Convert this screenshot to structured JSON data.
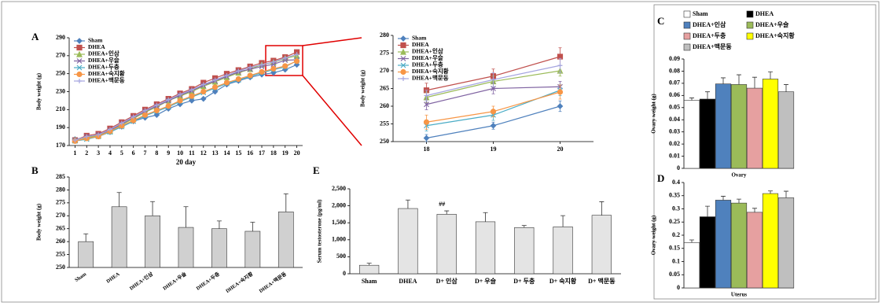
{
  "chart_data": [
    {
      "type": "line",
      "panel": "A",
      "xlabel": "20 day",
      "ylabel": "Body weight (g)",
      "x": [
        1,
        2,
        3,
        4,
        5,
        6,
        7,
        8,
        9,
        10,
        11,
        12,
        13,
        14,
        15,
        16,
        17,
        18,
        19,
        20
      ],
      "xlim": [
        0.5,
        20.5
      ],
      "xticks": [
        1,
        2,
        3,
        4,
        5,
        6,
        7,
        8,
        9,
        10,
        11,
        12,
        13,
        14,
        15,
        16,
        17,
        18,
        19,
        20
      ],
      "ylim": [
        170,
        290
      ],
      "yticks": [
        170,
        190,
        210,
        230,
        250,
        270,
        290
      ],
      "grid": false,
      "series": [
        {
          "name": "Sham",
          "color": "#4f81bd",
          "marker": "diamond",
          "values": [
            177,
            179,
            181,
            185,
            191,
            197,
            201,
            204,
            211,
            216,
            220,
            222,
            230,
            238,
            242,
            246,
            249,
            251,
            254.5,
            260
          ]
        },
        {
          "name": "DHEA",
          "color": "#c0504d",
          "marker": "square",
          "values": [
            176,
            181,
            183,
            189,
            196,
            203,
            210,
            216,
            222,
            228,
            233,
            240,
            245,
            250,
            254,
            258,
            262,
            264.5,
            268.5,
            274
          ]
        },
        {
          "name": "DHEA+인삼",
          "color": "#9bbb59",
          "marker": "triangle",
          "values": [
            176,
            179,
            181,
            186,
            193,
            200,
            207,
            213,
            220,
            225,
            230,
            236,
            241,
            246,
            251,
            255,
            260,
            262.5,
            267,
            270
          ]
        },
        {
          "name": "DHEA+우슬",
          "color": "#8064a2",
          "marker": "x",
          "values": [
            176,
            180,
            182,
            187,
            194,
            201,
            208,
            214,
            220,
            226,
            231,
            237,
            242,
            247,
            252,
            255,
            258,
            260.5,
            265,
            265.5
          ]
        },
        {
          "name": "DHEA+두충",
          "color": "#4bacc6",
          "marker": "x",
          "values": [
            175,
            177,
            180,
            185,
            191,
            197,
            203,
            208,
            213,
            219,
            224,
            229,
            234,
            239,
            243,
            247,
            251,
            254.5,
            257.5,
            264.5
          ]
        },
        {
          "name": "DHEA+숙지황",
          "color": "#f79646",
          "marker": "circle",
          "values": [
            175,
            178,
            180,
            186,
            192,
            198,
            204,
            209,
            214,
            220,
            225,
            230,
            235,
            240,
            244,
            248,
            252,
            255.5,
            258.5,
            264
          ]
        },
        {
          "name": "DHEA+맥문동",
          "color": "#a5a5e0",
          "marker": "plus",
          "values": [
            176,
            180,
            182,
            188,
            195,
            202,
            209,
            215,
            221,
            227,
            232,
            238,
            243,
            248,
            253,
            257,
            260,
            263,
            267.5,
            271.5
          ]
        }
      ]
    },
    {
      "type": "line",
      "ylabel": "Body weight (g)",
      "x": [
        18,
        19,
        20
      ],
      "xlim": [
        17.5,
        20.5
      ],
      "xticks": [
        18,
        19,
        20
      ],
      "ylim": [
        250,
        280
      ],
      "yticks": [
        250,
        255,
        260,
        265,
        270,
        275,
        280
      ],
      "grid": false,
      "series": [
        {
          "name": "Sham",
          "color": "#4f81bd",
          "marker": "diamond",
          "values": [
            251,
            254.5,
            260
          ],
          "errors": [
            1,
            1,
            1.5
          ]
        },
        {
          "name": "DHEA",
          "color": "#c0504d",
          "marker": "square",
          "values": [
            264.5,
            268.5,
            274
          ],
          "errors": [
            2,
            2,
            2.5
          ]
        },
        {
          "name": "DHEA+인삼",
          "color": "#9bbb59",
          "marker": "triangle",
          "values": [
            262.5,
            267,
            270
          ],
          "errors": [
            1.5,
            1.5,
            1.5
          ]
        },
        {
          "name": "DHEA+우슬",
          "color": "#8064a2",
          "marker": "x",
          "values": [
            260.5,
            265,
            265.5
          ],
          "errors": [
            1.5,
            1.5,
            1.5
          ]
        },
        {
          "name": "DHEA+두충",
          "color": "#4bacc6",
          "marker": "x",
          "values": [
            254.5,
            257.5,
            264.5
          ],
          "errors": [
            1.5,
            1.5,
            1.5
          ]
        },
        {
          "name": "DHEA+숙지황",
          "color": "#f79646",
          "marker": "circle",
          "values": [
            255.5,
            258.5,
            264
          ],
          "errors": [
            2,
            1.5,
            2
          ]
        },
        {
          "name": "DHEA+맥문동",
          "color": "#a5a5e0",
          "marker": "plus",
          "values": [
            263,
            267.5,
            271.5
          ],
          "errors": [
            1.5,
            2,
            2
          ]
        }
      ]
    },
    {
      "type": "bar",
      "panel": "B",
      "ylabel": "Body weight (g)",
      "categories": [
        "Sham",
        "DHEA",
        "DHEA+인삼",
        "DHEA+우슬",
        "DHEA+두충",
        "DHEA+숙지황",
        "DHEA+맥문동"
      ],
      "values": [
        260,
        273.5,
        270,
        265.5,
        265,
        264,
        271.5
      ],
      "errors": [
        3,
        5.5,
        5.5,
        8,
        3,
        3.5,
        7
      ],
      "color": "#d0d0d0",
      "ylim": [
        250,
        285
      ],
      "yticks": [
        250,
        255,
        260,
        265,
        270,
        275,
        280,
        285
      ]
    },
    {
      "type": "bar",
      "panel": "E",
      "ylabel": "Serum testosterone (pg/ml)",
      "annotation": "##",
      "categories": [
        "Sham",
        "DHEA",
        "D+ 인삼",
        "D+ 우슬",
        "D+ 두충",
        "D+ 숙지황",
        "D+ 맥문동"
      ],
      "values": [
        250,
        1920,
        1750,
        1530,
        1360,
        1380,
        1720
      ],
      "errors": [
        60,
        250,
        100,
        270,
        60,
        330,
        400
      ],
      "color": "#e4e4e4",
      "ylim": [
        0,
        2500
      ],
      "yticks": [
        0,
        500,
        {
          "value": 1000,
          "label": "1,000"
        },
        {
          "value": 1500,
          "label": "1,500"
        },
        {
          "value": 2000,
          "label": "2,000"
        },
        {
          "value": 2500,
          "label": "2,500"
        }
      ]
    },
    {
      "type": "bar",
      "panel": "C",
      "ylabel": "Ovary weight (g)",
      "xlabel": "Ovary",
      "legend": true,
      "categories": [
        "Sham",
        "DHEA",
        "DHEA+인삼",
        "DHEA+우슬",
        "DHEA+두충",
        "DHEA+숙지황",
        "DHEA+맥문동"
      ],
      "values": [
        0.056,
        0.057,
        0.0695,
        0.069,
        0.066,
        0.0735,
        0.063
      ],
      "errors": [
        0.002,
        0.006,
        0.005,
        0.008,
        0.009,
        0.006,
        0.006
      ],
      "colors": [
        "#ffffff",
        "#000000",
        "#4f81bd",
        "#9bbb59",
        "#e6a0a0",
        "#ffff00",
        "#bfbfbf"
      ],
      "ylim": [
        0,
        0.09
      ],
      "yticks": [
        0,
        0.01,
        0.02,
        0.03,
        0.04,
        0.05,
        0.06,
        0.07,
        0.08,
        0.09
      ]
    },
    {
      "type": "bar",
      "panel": "D",
      "ylabel": "Ovary weight (g)",
      "xlabel": "Uterus",
      "values": [
        0.172,
        0.27,
        0.333,
        0.322,
        0.287,
        0.358,
        0.342
      ],
      "errors": [
        0.01,
        0.04,
        0.015,
        0.015,
        0.015,
        0.01,
        0.025
      ],
      "colors": [
        "#ffffff",
        "#000000",
        "#4f81bd",
        "#9bbb59",
        "#e6a0a0",
        "#ffff00",
        "#bfbfbf"
      ],
      "ylim": [
        0,
        0.4
      ],
      "yticks": [
        0,
        0.05,
        0.1,
        0.15,
        0.2,
        0.25,
        0.3,
        0.35,
        0.4
      ]
    }
  ]
}
